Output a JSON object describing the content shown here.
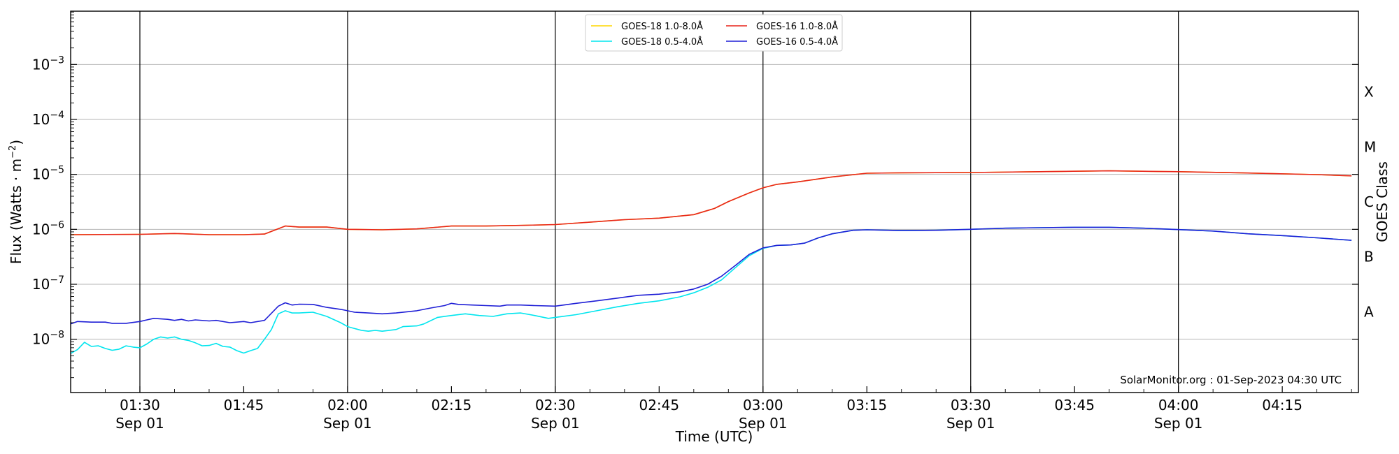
{
  "chart_data": {
    "type": "line",
    "xlabel": "Time (UTC)",
    "ylabel_base": "Flux (Watts · m",
    "ylabel_exp": "−2",
    "ylabel_close": ")",
    "right_label": "GOES Class",
    "credit": "SolarMonitor.org : 01-Sep-2023 04:30 UTC",
    "yscale": "log",
    "ylim_log10": [
      -8.97,
      -2.03
    ],
    "xlim": [
      "01:20",
      "04:26"
    ],
    "grid": "horizontal at decades; vertical lines every 30 minutes",
    "legend_placement": "top-center",
    "x_ticks": [
      {
        "time": "01:30",
        "label": "01:30",
        "sublabel": "Sep 01",
        "major": true
      },
      {
        "time": "01:45",
        "label": "01:45",
        "sublabel": "",
        "major": false
      },
      {
        "time": "02:00",
        "label": "02:00",
        "sublabel": "Sep 01",
        "major": true
      },
      {
        "time": "02:15",
        "label": "02:15",
        "sublabel": "",
        "major": false
      },
      {
        "time": "02:30",
        "label": "02:30",
        "sublabel": "Sep 01",
        "major": true
      },
      {
        "time": "02:45",
        "label": "02:45",
        "sublabel": "",
        "major": false
      },
      {
        "time": "03:00",
        "label": "03:00",
        "sublabel": "Sep 01",
        "major": true
      },
      {
        "time": "03:15",
        "label": "03:15",
        "sublabel": "",
        "major": false
      },
      {
        "time": "03:30",
        "label": "03:30",
        "sublabel": "Sep 01",
        "major": true
      },
      {
        "time": "03:45",
        "label": "03:45",
        "sublabel": "",
        "major": false
      },
      {
        "time": "04:00",
        "label": "04:00",
        "sublabel": "Sep 01",
        "major": true
      },
      {
        "time": "04:15",
        "label": "04:15",
        "sublabel": "",
        "major": false
      }
    ],
    "y_ticks": [
      {
        "log10": -8,
        "base": "10",
        "exp": "−8"
      },
      {
        "log10": -7,
        "base": "10",
        "exp": "−7"
      },
      {
        "log10": -6,
        "base": "10",
        "exp": "−6"
      },
      {
        "log10": -5,
        "base": "10",
        "exp": "−5"
      },
      {
        "log10": -4,
        "base": "10",
        "exp": "−4"
      },
      {
        "log10": -3,
        "base": "10",
        "exp": "−3"
      }
    ],
    "goes_classes": [
      {
        "label": "A",
        "log10": -7.5
      },
      {
        "label": "B",
        "log10": -6.5
      },
      {
        "label": "C",
        "log10": -5.5
      },
      {
        "label": "M",
        "log10": -4.5
      },
      {
        "label": "X",
        "log10": -3.5
      }
    ],
    "series": [
      {
        "name": "GOES-18 1.0-8.0Å",
        "color": "#ffd700",
        "points": [
          [
            "01:20",
            8e-07
          ],
          [
            "01:30",
            8.1e-07
          ],
          [
            "01:35",
            8.4e-07
          ],
          [
            "01:40",
            8e-07
          ],
          [
            "01:45",
            8e-07
          ],
          [
            "01:48",
            8.2e-07
          ],
          [
            "01:51",
            1.15e-06
          ],
          [
            "01:53",
            1.1e-06
          ],
          [
            "01:57",
            1.1e-06
          ],
          [
            "02:00",
            1e-06
          ],
          [
            "02:05",
            9.8e-07
          ],
          [
            "02:10",
            1.02e-06
          ],
          [
            "02:15",
            1.15e-06
          ],
          [
            "02:20",
            1.15e-06
          ],
          [
            "02:25",
            1.18e-06
          ],
          [
            "02:30",
            1.22e-06
          ],
          [
            "02:35",
            1.35e-06
          ],
          [
            "02:40",
            1.5e-06
          ],
          [
            "02:45",
            1.6e-06
          ],
          [
            "02:50",
            1.85e-06
          ],
          [
            "02:53",
            2.4e-06
          ],
          [
            "02:55",
            3.2e-06
          ],
          [
            "02:58",
            4.6e-06
          ],
          [
            "03:00",
            5.7e-06
          ],
          [
            "03:02",
            6.6e-06
          ],
          [
            "03:05",
            7.3e-06
          ],
          [
            "03:10",
            9e-06
          ],
          [
            "03:15",
            1.05e-05
          ],
          [
            "03:20",
            1.07e-05
          ],
          [
            "03:30",
            1.08e-05
          ],
          [
            "03:40",
            1.12e-05
          ],
          [
            "03:50",
            1.16e-05
          ],
          [
            "04:00",
            1.12e-05
          ],
          [
            "04:10",
            1.06e-05
          ],
          [
            "04:20",
            9.9e-06
          ],
          [
            "04:25",
            9.4e-06
          ]
        ]
      },
      {
        "name": "GOES-16 1.0-8.0Å",
        "color": "#e8251b",
        "points": [
          [
            "01:20",
            8e-07
          ],
          [
            "01:30",
            8.1e-07
          ],
          [
            "01:35",
            8.4e-07
          ],
          [
            "01:40",
            8e-07
          ],
          [
            "01:45",
            8e-07
          ],
          [
            "01:48",
            8.2e-07
          ],
          [
            "01:51",
            1.15e-06
          ],
          [
            "01:53",
            1.1e-06
          ],
          [
            "01:57",
            1.1e-06
          ],
          [
            "02:00",
            1e-06
          ],
          [
            "02:05",
            9.8e-07
          ],
          [
            "02:10",
            1.02e-06
          ],
          [
            "02:15",
            1.15e-06
          ],
          [
            "02:20",
            1.15e-06
          ],
          [
            "02:25",
            1.18e-06
          ],
          [
            "02:30",
            1.22e-06
          ],
          [
            "02:35",
            1.35e-06
          ],
          [
            "02:40",
            1.5e-06
          ],
          [
            "02:45",
            1.6e-06
          ],
          [
            "02:50",
            1.85e-06
          ],
          [
            "02:53",
            2.4e-06
          ],
          [
            "02:55",
            3.2e-06
          ],
          [
            "02:58",
            4.6e-06
          ],
          [
            "03:00",
            5.7e-06
          ],
          [
            "03:02",
            6.6e-06
          ],
          [
            "03:05",
            7.3e-06
          ],
          [
            "03:10",
            9e-06
          ],
          [
            "03:15",
            1.05e-05
          ],
          [
            "03:20",
            1.07e-05
          ],
          [
            "03:30",
            1.08e-05
          ],
          [
            "03:40",
            1.12e-05
          ],
          [
            "03:50",
            1.16e-05
          ],
          [
            "04:00",
            1.12e-05
          ],
          [
            "04:10",
            1.06e-05
          ],
          [
            "04:20",
            9.9e-06
          ],
          [
            "04:25",
            9.4e-06
          ]
        ]
      },
      {
        "name": "GOES-18 0.5-4.0Å",
        "color": "#00e5ee",
        "points": [
          [
            "01:20",
            5.5e-09
          ],
          [
            "01:21",
            6.5e-09
          ],
          [
            "01:22",
            8.8e-09
          ],
          [
            "01:23",
            7.4e-09
          ],
          [
            "01:24",
            7.6e-09
          ],
          [
            "01:25",
            6.8e-09
          ],
          [
            "01:26",
            6.3e-09
          ],
          [
            "01:27",
            6.6e-09
          ],
          [
            "01:28",
            7.6e-09
          ],
          [
            "01:29",
            7.2e-09
          ],
          [
            "01:30",
            7e-09
          ],
          [
            "01:31",
            8.2e-09
          ],
          [
            "01:32",
            1e-08
          ],
          [
            "01:33",
            1.1e-08
          ],
          [
            "01:34",
            1.05e-08
          ],
          [
            "01:35",
            1.1e-08
          ],
          [
            "01:36",
            1e-08
          ],
          [
            "01:37",
            9.5e-09
          ],
          [
            "01:38",
            8.6e-09
          ],
          [
            "01:39",
            7.6e-09
          ],
          [
            "01:40",
            7.7e-09
          ],
          [
            "01:41",
            8.4e-09
          ],
          [
            "01:42",
            7.4e-09
          ],
          [
            "01:43",
            7.2e-09
          ],
          [
            "01:44",
            6.2e-09
          ],
          [
            "01:45",
            5.6e-09
          ],
          [
            "01:46",
            6.2e-09
          ],
          [
            "01:47",
            6.8e-09
          ],
          [
            "01:48",
            1e-08
          ],
          [
            "01:49",
            1.5e-08
          ],
          [
            "01:50",
            2.9e-08
          ],
          [
            "01:51",
            3.3e-08
          ],
          [
            "01:52",
            3e-08
          ],
          [
            "01:53",
            3e-08
          ],
          [
            "01:55",
            3.1e-08
          ],
          [
            "01:57",
            2.6e-08
          ],
          [
            "01:59",
            2e-08
          ],
          [
            "02:00",
            1.7e-08
          ],
          [
            "02:02",
            1.45e-08
          ],
          [
            "02:03",
            1.4e-08
          ],
          [
            "02:04",
            1.45e-08
          ],
          [
            "02:05",
            1.4e-08
          ],
          [
            "02:07",
            1.5e-08
          ],
          [
            "02:08",
            1.7e-08
          ],
          [
            "02:10",
            1.75e-08
          ],
          [
            "02:11",
            1.9e-08
          ],
          [
            "02:13",
            2.5e-08
          ],
          [
            "02:15",
            2.7e-08
          ],
          [
            "02:17",
            2.9e-08
          ],
          [
            "02:19",
            2.7e-08
          ],
          [
            "02:21",
            2.6e-08
          ],
          [
            "02:23",
            2.9e-08
          ],
          [
            "02:25",
            3e-08
          ],
          [
            "02:27",
            2.7e-08
          ],
          [
            "02:29",
            2.4e-08
          ],
          [
            "02:30",
            2.5e-08
          ],
          [
            "02:33",
            2.8e-08
          ],
          [
            "02:36",
            3.3e-08
          ],
          [
            "02:39",
            3.9e-08
          ],
          [
            "02:42",
            4.5e-08
          ],
          [
            "02:45",
            5e-08
          ],
          [
            "02:48",
            5.9e-08
          ],
          [
            "02:50",
            7e-08
          ],
          [
            "02:52",
            8.8e-08
          ],
          [
            "02:54",
            1.2e-07
          ],
          [
            "02:56",
            2e-07
          ],
          [
            "02:58",
            3.3e-07
          ],
          [
            "03:00",
            4.5e-07
          ],
          [
            "03:02",
            5.1e-07
          ],
          [
            "03:04",
            5.2e-07
          ],
          [
            "03:06",
            5.6e-07
          ],
          [
            "03:08",
            7e-07
          ],
          [
            "03:10",
            8.3e-07
          ],
          [
            "03:13",
            9.6e-07
          ],
          [
            "03:15",
            9.8e-07
          ],
          [
            "03:20",
            9.5e-07
          ],
          [
            "03:25",
            9.6e-07
          ],
          [
            "03:30",
            1e-06
          ],
          [
            "03:35",
            1.05e-06
          ],
          [
            "03:40",
            1.07e-06
          ],
          [
            "03:45",
            1.09e-06
          ],
          [
            "03:50",
            1.09e-06
          ],
          [
            "03:55",
            1.05e-06
          ],
          [
            "04:00",
            9.9e-07
          ],
          [
            "04:05",
            9.3e-07
          ],
          [
            "04:10",
            8.3e-07
          ],
          [
            "04:15",
            7.7e-07
          ],
          [
            "04:20",
            7e-07
          ],
          [
            "04:25",
            6.3e-07
          ]
        ]
      },
      {
        "name": "GOES-16 0.5-4.0Å",
        "color": "#1f1fd6",
        "points": [
          [
            "01:20",
            1.9e-08
          ],
          [
            "01:21",
            2.1e-08
          ],
          [
            "01:23",
            2.05e-08
          ],
          [
            "01:25",
            2.05e-08
          ],
          [
            "01:26",
            1.95e-08
          ],
          [
            "01:28",
            1.95e-08
          ],
          [
            "01:30",
            2.1e-08
          ],
          [
            "01:31",
            2.25e-08
          ],
          [
            "01:32",
            2.4e-08
          ],
          [
            "01:34",
            2.3e-08
          ],
          [
            "01:35",
            2.2e-08
          ],
          [
            "01:36",
            2.3e-08
          ],
          [
            "01:37",
            2.15e-08
          ],
          [
            "01:38",
            2.25e-08
          ],
          [
            "01:40",
            2.15e-08
          ],
          [
            "01:41",
            2.2e-08
          ],
          [
            "01:43",
            2e-08
          ],
          [
            "01:45",
            2.1e-08
          ],
          [
            "01:46",
            2e-08
          ],
          [
            "01:48",
            2.2e-08
          ],
          [
            "01:50",
            4e-08
          ],
          [
            "01:51",
            4.6e-08
          ],
          [
            "01:52",
            4.2e-08
          ],
          [
            "01:53",
            4.35e-08
          ],
          [
            "01:55",
            4.3e-08
          ],
          [
            "01:57",
            3.8e-08
          ],
          [
            "01:59",
            3.5e-08
          ],
          [
            "02:00",
            3.3e-08
          ],
          [
            "02:01",
            3.1e-08
          ],
          [
            "02:03",
            3e-08
          ],
          [
            "02:05",
            2.9e-08
          ],
          [
            "02:07",
            3e-08
          ],
          [
            "02:10",
            3.3e-08
          ],
          [
            "02:12",
            3.7e-08
          ],
          [
            "02:14",
            4.1e-08
          ],
          [
            "02:15",
            4.5e-08
          ],
          [
            "02:16",
            4.3e-08
          ],
          [
            "02:18",
            4.2e-08
          ],
          [
            "02:20",
            4.1e-08
          ],
          [
            "02:22",
            4e-08
          ],
          [
            "02:23",
            4.2e-08
          ],
          [
            "02:25",
            4.2e-08
          ],
          [
            "02:27",
            4.1e-08
          ],
          [
            "02:30",
            4e-08
          ],
          [
            "02:33",
            4.5e-08
          ],
          [
            "02:36",
            5e-08
          ],
          [
            "02:39",
            5.6e-08
          ],
          [
            "02:42",
            6.3e-08
          ],
          [
            "02:45",
            6.6e-08
          ],
          [
            "02:48",
            7.3e-08
          ],
          [
            "02:50",
            8.2e-08
          ],
          [
            "02:52",
            1e-07
          ],
          [
            "02:54",
            1.4e-07
          ],
          [
            "02:56",
            2.2e-07
          ],
          [
            "02:58",
            3.5e-07
          ],
          [
            "03:00",
            4.6e-07
          ],
          [
            "03:02",
            5.1e-07
          ],
          [
            "03:04",
            5.2e-07
          ],
          [
            "03:06",
            5.6e-07
          ],
          [
            "03:08",
            7e-07
          ],
          [
            "03:10",
            8.3e-07
          ],
          [
            "03:13",
            9.6e-07
          ],
          [
            "03:15",
            9.8e-07
          ],
          [
            "03:20",
            9.5e-07
          ],
          [
            "03:25",
            9.6e-07
          ],
          [
            "03:30",
            1e-06
          ],
          [
            "03:35",
            1.05e-06
          ],
          [
            "03:40",
            1.07e-06
          ],
          [
            "03:45",
            1.09e-06
          ],
          [
            "03:50",
            1.09e-06
          ],
          [
            "03:55",
            1.05e-06
          ],
          [
            "04:00",
            9.9e-07
          ],
          [
            "04:05",
            9.3e-07
          ],
          [
            "04:10",
            8.3e-07
          ],
          [
            "04:15",
            7.7e-07
          ],
          [
            "04:20",
            7e-07
          ],
          [
            "04:25",
            6.3e-07
          ]
        ]
      }
    ],
    "legend_order": [
      0,
      2,
      1,
      3
    ]
  }
}
